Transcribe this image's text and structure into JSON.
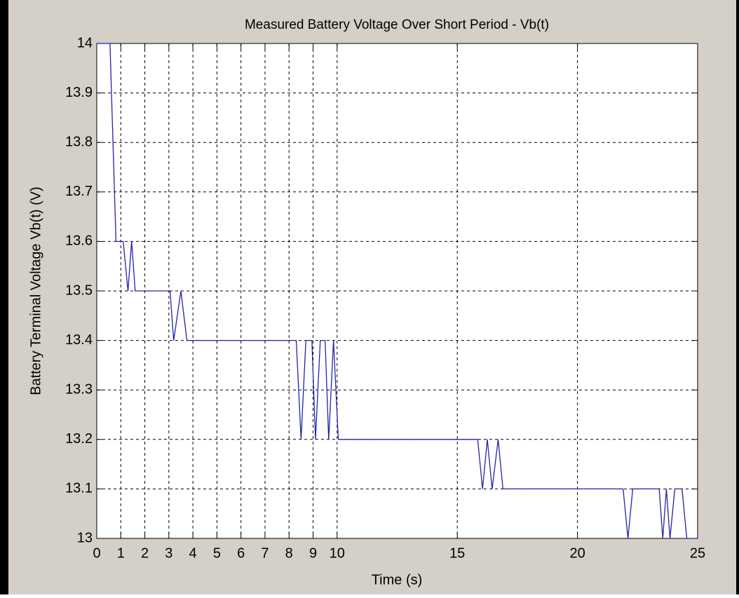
{
  "chart_data": {
    "type": "line",
    "title": "Measured Battery Voltage Over Short Period - Vb(t)",
    "xlabel": "Time (s)",
    "ylabel": "Battery Terminal Voltage Vb(t)  (V)",
    "x": [
      0,
      0.55,
      0.8,
      1.1,
      1.3,
      1.45,
      1.6,
      3.05,
      3.2,
      3.5,
      3.75,
      8.3,
      8.5,
      8.7,
      8.95,
      9.1,
      9.3,
      9.5,
      9.65,
      9.85,
      10.05,
      15.85,
      16.05,
      16.25,
      16.45,
      16.7,
      16.9,
      21.9,
      22.1,
      22.3,
      23.4,
      23.55,
      23.7,
      23.85,
      24.05,
      24.35,
      24.55,
      25
    ],
    "values": [
      14,
      14,
      13.6,
      13.6,
      13.5,
      13.6,
      13.5,
      13.5,
      13.4,
      13.5,
      13.4,
      13.4,
      13.2,
      13.4,
      13.4,
      13.2,
      13.4,
      13.4,
      13.2,
      13.4,
      13.2,
      13.2,
      13.1,
      13.2,
      13.1,
      13.2,
      13.1,
      13.1,
      13,
      13.1,
      13.1,
      13,
      13.1,
      13,
      13.1,
      13.1,
      13,
      13
    ],
    "color": "#2323a8",
    "xlim": [
      0,
      25
    ],
    "xticks": [
      0,
      1,
      2,
      3,
      4,
      5,
      6,
      7,
      8,
      9,
      10,
      15,
      20,
      25
    ],
    "ylim": [
      13,
      14
    ],
    "yticks": [
      13,
      13.1,
      13.2,
      13.3,
      13.4,
      13.5,
      13.6,
      13.7,
      13.8,
      13.9,
      14
    ],
    "grid": true
  }
}
